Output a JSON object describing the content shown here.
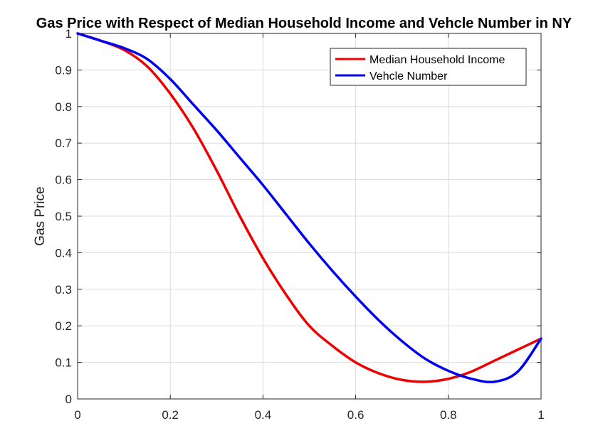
{
  "chart_data": {
    "type": "line",
    "title": "Gas Price with Respect of Median Household Income and Vehcle Number in NY",
    "xlabel": "",
    "ylabel": "Gas Price",
    "xlim": [
      0,
      1
    ],
    "ylim": [
      0,
      1
    ],
    "x_ticks": [
      "0",
      "0.2",
      "0.4",
      "0.6",
      "0.8",
      "1"
    ],
    "y_ticks": [
      "0",
      "0.1",
      "0.2",
      "0.3",
      "0.4",
      "0.5",
      "0.6",
      "0.7",
      "0.8",
      "0.9",
      "1"
    ],
    "grid": true,
    "legend_position": "top-right",
    "series": [
      {
        "name": "Median Household Income",
        "color": "#ee0000",
        "x": [
          0,
          0.05,
          0.1,
          0.15,
          0.2,
          0.25,
          0.3,
          0.35,
          0.4,
          0.45,
          0.5,
          0.55,
          0.6,
          0.65,
          0.7,
          0.75,
          0.8,
          0.85,
          0.9,
          0.95,
          1
        ],
        "y": [
          1.0,
          0.98,
          0.955,
          0.91,
          0.835,
          0.74,
          0.625,
          0.5,
          0.385,
          0.285,
          0.2,
          0.145,
          0.1,
          0.07,
          0.052,
          0.047,
          0.055,
          0.075,
          0.105,
          0.135,
          0.165
        ]
      },
      {
        "name": "Vehcle Number",
        "color": "#0000ee",
        "x": [
          0,
          0.05,
          0.1,
          0.15,
          0.2,
          0.25,
          0.3,
          0.35,
          0.4,
          0.45,
          0.5,
          0.55,
          0.6,
          0.65,
          0.7,
          0.75,
          0.8,
          0.85,
          0.9,
          0.95,
          1
        ],
        "y": [
          1.0,
          0.98,
          0.96,
          0.93,
          0.875,
          0.805,
          0.735,
          0.66,
          0.585,
          0.505,
          0.425,
          0.35,
          0.28,
          0.215,
          0.158,
          0.11,
          0.077,
          0.055,
          0.047,
          0.075,
          0.165
        ]
      }
    ]
  }
}
